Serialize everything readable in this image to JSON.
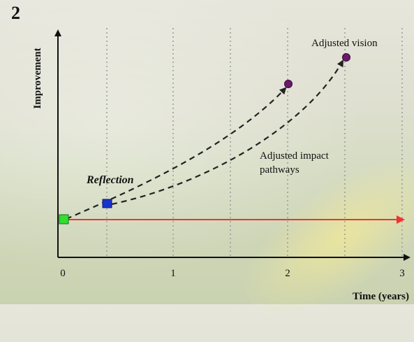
{
  "panel_label": "2",
  "y_axis_label": "Improvement",
  "x_axis_label": "Time (years)",
  "x_ticks": [
    "0",
    "1",
    "2",
    "3"
  ],
  "annotations": {
    "reflection": "Reflection",
    "adjusted_vision": "Adjusted vision",
    "adjusted_impact_line1": "Adjusted impact",
    "adjusted_impact_line2": "pathways"
  },
  "colors": {
    "start_marker": "#33dd33",
    "reflection_marker": "#1a33cc",
    "vision_marker": "#6a1a6a",
    "baseline_arrow": "#ee3333",
    "dashed_path": "#222222",
    "grid": "#999999"
  }
}
